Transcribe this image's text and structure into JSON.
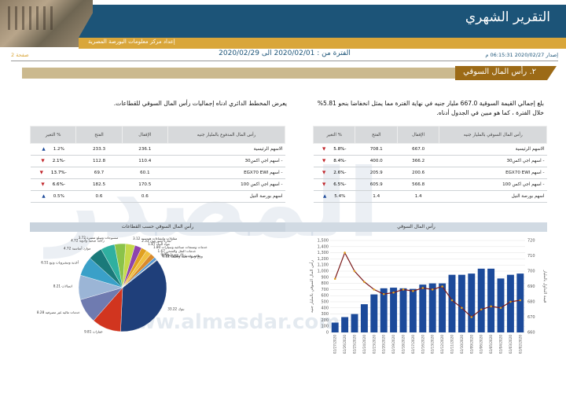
{
  "header": {
    "title": "التقرير الشهري",
    "subtitle": "إعداد مركز معلومات البورصة المصرية"
  },
  "topline": {
    "page": "صفحة 2",
    "period": "الفترة من : 2020/02/01 الى 2020/02/29",
    "issue_date": "إصدار 2020/02/27 06:15:31 م"
  },
  "section": {
    "number": "٢.",
    "title": "رأس المال السوقي"
  },
  "paragraph_right": "بلغ إجمالي القيمة السوقية 667.0 مليار جنيه في نهاية الفترة مما يمثل انخفاضا بنحو 5.81% خلال الفترة ، كما هو مبين في الجدول أدناه.",
  "paragraph_left": "يعرض المخطط الدائري ادناه إجماليات رأس المال السوقي للقطاعات.",
  "table_right": {
    "headers": [
      "رأس المال السوقي بالمليار جنيه",
      "الإقفال",
      "الفتح",
      "% التغير"
    ],
    "rows": [
      {
        "label": "الاسهم الرئيسية",
        "close": "667.0",
        "open": "708.1",
        "change": "-5.8%",
        "dir": "down"
      },
      {
        "label": "- اسهم اجي اكس30",
        "close": "366.2",
        "open": "400.0",
        "change": "-8.4%",
        "dir": "down"
      },
      {
        "label": "- اسهم EGX70 EWI",
        "close": "200.6",
        "open": "205.9",
        "change": "-2.6%",
        "dir": "down"
      },
      {
        "label": "- اسهم اجي اكس 100",
        "close": "566.8",
        "open": "605.9",
        "change": "-6.5%",
        "dir": "down"
      },
      {
        "label": "اسهم بورصة النيل",
        "close": "1.4",
        "open": "1.4",
        "change": "5.4%",
        "dir": "up"
      }
    ]
  },
  "table_left": {
    "headers": [
      "رأس المال المدفوع بالمليار جنيه",
      "الإقفال",
      "الفتح",
      "% التغير"
    ],
    "rows": [
      {
        "label": "الاسهم الرئيسية",
        "close": "236.1",
        "open": "233.3",
        "change": "1.2%",
        "dir": "up"
      },
      {
        "label": "- اسهم اجي اكس30",
        "close": "110.4",
        "open": "112.8",
        "change": "-2.1%",
        "dir": "down"
      },
      {
        "label": "- اسهم EGX70 EWI",
        "close": "60.1",
        "open": "69.7",
        "change": "-13.7%",
        "dir": "down"
      },
      {
        "label": "- اسهم اجي اكس 100",
        "close": "170.5",
        "open": "182.5",
        "change": "-6.6%",
        "dir": "down"
      },
      {
        "label": "اسهم بورصة النيل",
        "close": "0.6",
        "open": "0.6",
        "change": "0.5%",
        "dir": "up"
      }
    ]
  },
  "pie_title": "رأس المال السوقي حسب القطاعات",
  "bar_title": "رأس المال السوقي",
  "watermark": "المصدر",
  "watermark_url": "www.almasdar.com",
  "colors": {
    "header": "#1c5478",
    "accent": "#d9a63a",
    "section": "#9c6a16",
    "bar": "#1c4a9a",
    "line": "#7a1a1a"
  },
  "chart_data": [
    {
      "type": "pie",
      "title": "رأس المال السوقي حسب القطاعات",
      "slices": [
        {
          "name": "بنوك",
          "value": 33.22,
          "color": "#1f3f7a"
        },
        {
          "name": "عقارات",
          "value": 9.81,
          "color": "#d1351f"
        },
        {
          "name": "خدمات مالية غير مصرفية",
          "value": 8.28,
          "color": "#6f7bb0"
        },
        {
          "name": "اتصالات",
          "value": 8.21,
          "color": "#9bb5d6"
        },
        {
          "name": "أغذية ومشروبات وتبغ",
          "value": 6.51,
          "color": "#3aa0c8"
        },
        {
          "name": "موارد أساسية",
          "value": 4.72,
          "color": "#1a7a7a"
        },
        {
          "name": "رعاية صحية وأدوية",
          "value": 4.72,
          "color": "#2fb0a0"
        },
        {
          "name": "منسوجات وسلع معمرة",
          "value": 3.72,
          "color": "#8bc34a"
        },
        {
          "name": "مقاولات وإنشاءات هندسية",
          "value": 3.12,
          "color": "#c5d94a"
        },
        {
          "name": "تجارة وموزعون",
          "value": 2.33,
          "color": "#8e44ad"
        },
        {
          "name": "مواد البناء",
          "value": 1.87,
          "color": "#e0a020"
        },
        {
          "name": "خدمات ومنتجات صناعية وسيارات",
          "value": 1.8,
          "color": "#f0c040"
        },
        {
          "name": "خدمات النقل والشحن",
          "value": 1.67,
          "color": "#d98a2c"
        },
        {
          "name": "غاز وبترول",
          "value": 0.95,
          "color": "#5a9bd5"
        },
        {
          "name": "طاقة وخدمات مساندة",
          "value": 0.18,
          "color": "#a3a3a3"
        },
        {
          "name": "ورق ومواد تعبئة وتغليف",
          "value": 0.12,
          "color": "#555555"
        }
      ]
    },
    {
      "type": "bar",
      "title": "رأس المال السوقي",
      "ylabel": "رأس المال السوقي بالمليار جنيه",
      "y2label": "قيمة التداول بالمليار",
      "categories": [
        "02/27/2020",
        "02/26/2020",
        "02/25/2020",
        "02/24/2020",
        "02/23/2020",
        "02/20/2020",
        "02/19/2020",
        "02/18/2020",
        "02/17/2020",
        "02/16/2020",
        "02/13/2020",
        "02/12/2020",
        "02/11/2020",
        "02/10/2020",
        "02/09/2020",
        "02/06/2020",
        "02/05/2020",
        "02/04/2020",
        "02/03/2020",
        "02/02/2020"
      ],
      "bar_values": [
        160,
        250,
        300,
        460,
        620,
        720,
        730,
        720,
        710,
        780,
        800,
        800,
        940,
        940,
        960,
        1040,
        1040,
        880,
        940,
        960
      ],
      "line_values": [
        695,
        712,
        700,
        693,
        688,
        685,
        686,
        688,
        687,
        689,
        688,
        690,
        681,
        676,
        670,
        675,
        677,
        676,
        680,
        681
      ],
      "ylim": [
        0,
        1500
      ],
      "y2lim": [
        660,
        720
      ],
      "yticks": [
        "0",
        "100",
        "200",
        "300",
        "400",
        "500",
        "600",
        "700",
        "800",
        "900",
        "1,000",
        "1,100",
        "1,200",
        "1,300",
        "1,400",
        "1,500"
      ],
      "y2ticks": [
        "660",
        "670",
        "680",
        "690",
        "700",
        "710",
        "720"
      ]
    }
  ]
}
